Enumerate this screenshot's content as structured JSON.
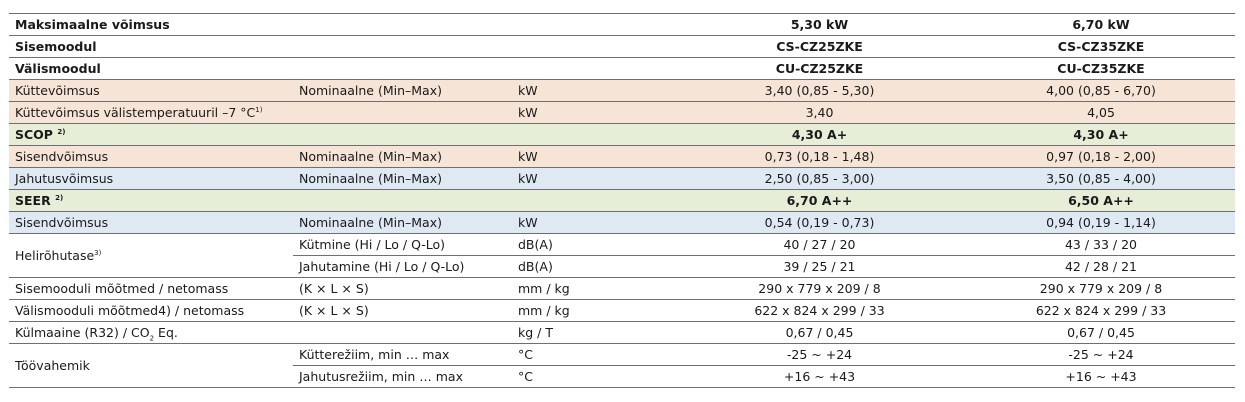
{
  "rows": [
    {
      "label": "Maksimaalne võimsus",
      "sup": "",
      "v1": "5,30 kW",
      "v2": "6,70 kW"
    },
    {
      "label": "Sisemoodul",
      "v1": "CS-CZ25ZKE",
      "v2": "CS-CZ35ZKE"
    },
    {
      "label": "Välismoodul",
      "v1": "CU-CZ25ZKE",
      "v2": "CU-CZ35ZKE"
    },
    {
      "label": "Küttevõimsus",
      "cond": "Nominaalne (Min–Max)",
      "unit": "kW",
      "v1": "3,40 (0,85 - 5,30)",
      "v2": "4,00 (0,85 - 6,70)"
    },
    {
      "label": "Küttevõimsus välistemperatuuril –7 °C",
      "sup": "1)",
      "unit": "kW",
      "v1": "3,40",
      "v2": "4,05"
    },
    {
      "label": "SCOP",
      "sup": "2)",
      "v1": "4,30 A+",
      "v2": "4,30 A+"
    },
    {
      "label": "Sisendvõimsus",
      "cond": "Nominaalne (Min–Max)",
      "unit": "kW",
      "v1": "0,73 (0,18 - 1,48)",
      "v2": "0,97 (0,18 - 2,00)"
    },
    {
      "label": "Jahutusvõimsus",
      "cond": "Nominaalne (Min–Max)",
      "unit": "kW",
      "v1": "2,50 (0,85 - 3,00)",
      "v2": "3,50 (0,85 - 4,00)"
    },
    {
      "label": "SEER",
      "sup": "2)",
      "v1": "6,70 A++",
      "v2": "6,50 A++"
    },
    {
      "label": "Sisendvõimsus",
      "cond": "Nominaalne (Min–Max)",
      "unit": "kW",
      "v1": "0,54 (0,19 - 0,73)",
      "v2": "0,94 (0,19 - 1,14)"
    },
    {
      "label": "Helirõhutase",
      "sup": "3)",
      "cond": "Kütmine (Hi / Lo / Q-Lo)",
      "unit": "dB(A)",
      "v1": "40 / 27 / 20",
      "v2": "43 / 33 / 20"
    },
    {
      "cond": "Jahutamine (Hi / Lo / Q-Lo)",
      "unit": "dB(A)",
      "v1": "39 / 25 / 21",
      "v2": "42 / 28 / 21"
    },
    {
      "label": "Sisemooduli mõõtmed / netomass",
      "cond": "(K × L × S)",
      "unit": "mm / kg",
      "v1": "290 x 779 x 209 / 8",
      "v2": "290 x 779 x 209 / 8"
    },
    {
      "label": "Välismooduli mõõtmed4) / netomass",
      "cond": "(K × L × S)",
      "unit": "mm / kg",
      "v1": "622 x 824 x 299 / 33",
      "v2": "622 x 824 x 299 / 33"
    },
    {
      "label": "Külmaaine (R32) / CO",
      "sub": "2",
      "label_tail": " Eq.",
      "unit": "kg / T",
      "v1": "0,67 / 0,45",
      "v2": "0,67 / 0,45"
    },
    {
      "label": "Töövahemik",
      "cond": "Kütterežiim, min … max",
      "unit": "°C",
      "v1": "-25 ~ +24",
      "v2": "-25 ~ +24"
    },
    {
      "cond": "Jahutusrežiim, min … max",
      "unit": "°C",
      "v1": "+16 ~ +43",
      "v2": "+16 ~ +43"
    }
  ]
}
